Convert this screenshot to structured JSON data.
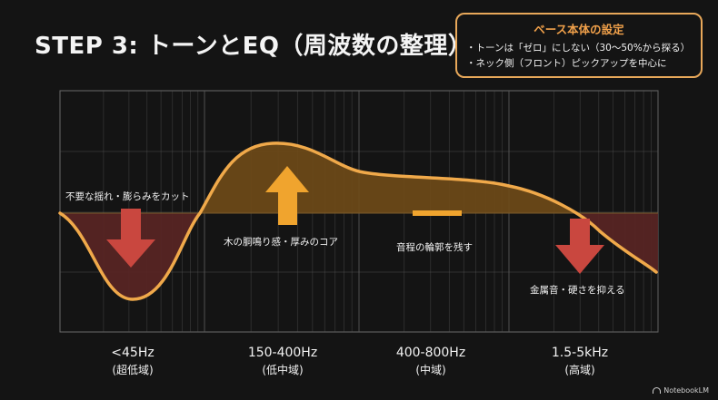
{
  "title": "STEP 3: トーンとEQ（周波数の整理）",
  "settings": {
    "heading": "ベース本体の設定",
    "items": [
      "・トーンは「ゼロ」にしない（30〜50%から探る）",
      "・ネック側（フロント）ピックアップを中心に"
    ]
  },
  "bands": [
    {
      "range": "<45Hz",
      "name": "(超低域)"
    },
    {
      "range": "150-400Hz",
      "name": "(低中域)"
    },
    {
      "range": "400-800Hz",
      "name": "(中域)"
    },
    {
      "range": "1.5-5kHz",
      "name": "(高域)"
    }
  ],
  "annotations": {
    "cut_low": "不要な揺れ・膨らみをカット",
    "boost_lowmid": "木の胴鳴り感・厚みのコア",
    "keep_mid": "音程の輪郭を残す",
    "cut_high": "金属音・硬さを抑える"
  },
  "colors": {
    "curve": "#f0a94a",
    "boost_fill": "#6f4a17",
    "cut_fill": "#5a2523",
    "arrow_up": "#f0a42e",
    "arrow_down": "#c9473f",
    "grid": "#5a5a5a"
  },
  "footer": "NotebookLM"
}
